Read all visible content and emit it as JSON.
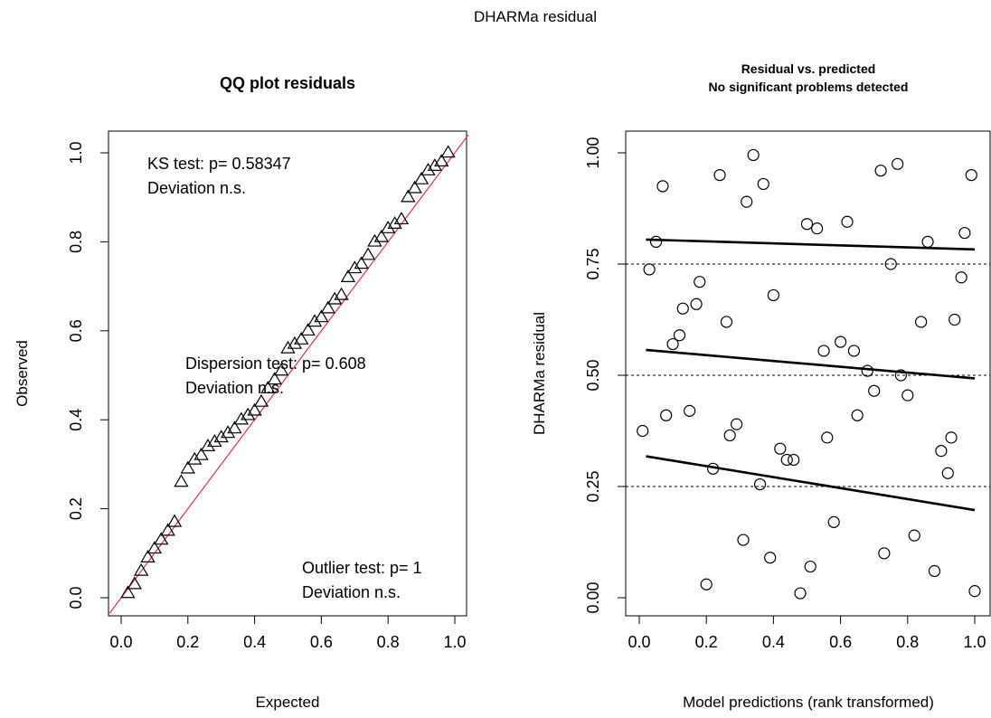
{
  "page_title": "DHARMa residual",
  "chart_data": [
    {
      "type": "scatter",
      "title": "QQ plot residuals",
      "xlabel": "Expected",
      "ylabel": "Observed",
      "xlim": [
        0.0,
        1.0
      ],
      "ylim": [
        0.0,
        1.0
      ],
      "x_ticks": [
        "0.0",
        "0.2",
        "0.4",
        "0.6",
        "0.8",
        "1.0"
      ],
      "y_ticks": [
        "0.0",
        "0.2",
        "0.4",
        "0.6",
        "0.8",
        "1.0"
      ],
      "marker": "triangle",
      "reference_line": {
        "from": [
          0,
          0
        ],
        "to": [
          1,
          1
        ],
        "color": "#e8314a"
      },
      "annotations": [
        {
          "lines": [
            "KS test: p= 0.58347",
            "Deviation  n.s."
          ],
          "position": "top-left"
        },
        {
          "lines": [
            "Dispersion test: p= 0.608",
            "Deviation  n.s."
          ],
          "position": "middle"
        },
        {
          "lines": [
            "Outlier test: p= 1",
            "Deviation  n.s."
          ],
          "position": "bottom-right"
        }
      ],
      "series": [
        {
          "x": [
            0.02,
            0.04,
            0.06,
            0.08,
            0.1,
            0.12,
            0.14,
            0.16,
            0.18,
            0.2,
            0.22,
            0.24,
            0.26,
            0.28,
            0.3,
            0.32,
            0.34,
            0.36,
            0.38,
            0.4,
            0.42,
            0.44,
            0.46,
            0.48,
            0.5,
            0.52,
            0.54,
            0.56,
            0.58,
            0.6,
            0.62,
            0.64,
            0.66,
            0.68,
            0.7,
            0.72,
            0.74,
            0.76,
            0.78,
            0.8,
            0.82,
            0.84,
            0.86,
            0.88,
            0.9,
            0.92,
            0.94,
            0.96,
            0.98
          ],
          "y": [
            0.01,
            0.03,
            0.06,
            0.09,
            0.11,
            0.13,
            0.15,
            0.17,
            0.26,
            0.29,
            0.31,
            0.32,
            0.34,
            0.35,
            0.36,
            0.37,
            0.38,
            0.4,
            0.41,
            0.42,
            0.44,
            0.47,
            0.49,
            0.51,
            0.56,
            0.57,
            0.58,
            0.6,
            0.62,
            0.63,
            0.65,
            0.67,
            0.68,
            0.72,
            0.74,
            0.75,
            0.77,
            0.8,
            0.81,
            0.83,
            0.84,
            0.85,
            0.9,
            0.92,
            0.94,
            0.96,
            0.97,
            0.98,
            1.0
          ]
        }
      ]
    },
    {
      "type": "scatter",
      "title": "Residual vs. predicted",
      "subtitle": "No significant problems detected",
      "xlabel": "Model predictions (rank transformed)",
      "ylabel": "DHARMa residual",
      "xlim": [
        0.0,
        1.0
      ],
      "ylim": [
        0.0,
        1.0
      ],
      "x_ticks": [
        "0.0",
        "0.2",
        "0.4",
        "0.6",
        "0.8",
        "1.0"
      ],
      "y_ticks": [
        "0.00",
        "0.25",
        "0.50",
        "0.75",
        "1.00"
      ],
      "marker": "circle",
      "dashed_reference_lines_y": [
        0.25,
        0.5,
        0.75
      ],
      "quantile_fits": [
        {
          "x": [
            0.02,
            1.0
          ],
          "y": [
            0.805,
            0.783
          ]
        },
        {
          "x": [
            0.02,
            1.0
          ],
          "y": [
            0.557,
            0.493
          ]
        },
        {
          "x": [
            0.02,
            1.0
          ],
          "y": [
            0.318,
            0.197
          ]
        }
      ],
      "series": [
        {
          "x": [
            0.01,
            0.03,
            0.05,
            0.07,
            0.08,
            0.1,
            0.12,
            0.13,
            0.15,
            0.17,
            0.18,
            0.2,
            0.22,
            0.24,
            0.26,
            0.27,
            0.29,
            0.31,
            0.32,
            0.34,
            0.36,
            0.37,
            0.39,
            0.4,
            0.42,
            0.44,
            0.46,
            0.48,
            0.5,
            0.51,
            0.53,
            0.55,
            0.56,
            0.58,
            0.6,
            0.62,
            0.64,
            0.65,
            0.68,
            0.7,
            0.72,
            0.73,
            0.75,
            0.77,
            0.78,
            0.8,
            0.82,
            0.84,
            0.86,
            0.88,
            0.9,
            0.92,
            0.94,
            0.96,
            0.97,
            0.99,
            1.0,
            0.93
          ],
          "y": [
            0.375,
            0.738,
            0.8,
            0.925,
            0.41,
            0.57,
            0.59,
            0.65,
            0.42,
            0.66,
            0.71,
            0.03,
            0.29,
            0.95,
            0.62,
            0.365,
            0.39,
            0.13,
            0.89,
            0.995,
            0.255,
            0.93,
            0.09,
            0.68,
            0.335,
            0.31,
            0.31,
            0.01,
            0.84,
            0.07,
            0.83,
            0.555,
            0.36,
            0.17,
            0.575,
            0.845,
            0.555,
            0.41,
            0.51,
            0.465,
            0.96,
            0.1,
            0.75,
            0.975,
            0.5,
            0.455,
            0.14,
            0.62,
            0.8,
            0.06,
            0.33,
            0.28,
            0.625,
            0.72,
            0.82,
            0.95,
            0.015,
            0.36
          ]
        }
      ]
    }
  ]
}
